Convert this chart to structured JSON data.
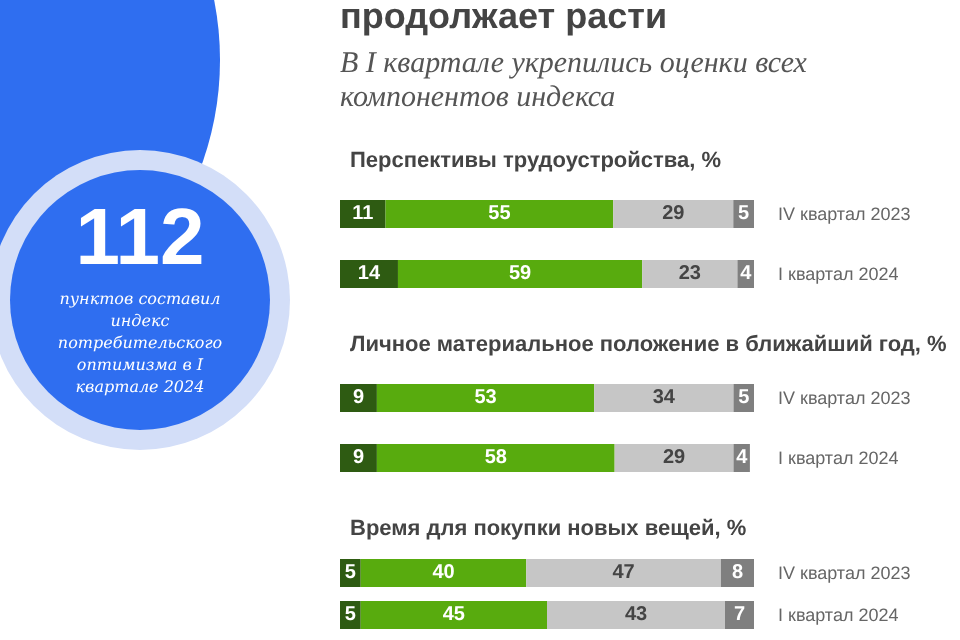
{
  "chart_data": [
    {
      "type": "other",
      "title": "продолжает расти",
      "subtitle": "В I квартале укрепились оценки всех компонентов индекса",
      "annotations": [
        "112",
        "пунктов составил индекс потребительского оптимизма в I квартале 2024"
      ]
    },
    {
      "type": "bar",
      "orientation": "horizontal",
      "stacked": true,
      "data_labels": true,
      "tick_labels": "y",
      "title": "Перспективы трудоустройства, %",
      "categories": [
        "IV квартал 2023",
        "I квартал 2024"
      ],
      "series": [
        {
          "color": "#2e5b12",
          "values": [
            11,
            14
          ]
        },
        {
          "color": "#58ab0e",
          "values": [
            55,
            59
          ]
        },
        {
          "color": "#c6c6c6",
          "values": [
            29,
            23
          ]
        },
        {
          "color": "#7f7f7f",
          "values": [
            5,
            4
          ]
        }
      ]
    },
    {
      "type": "bar",
      "orientation": "horizontal",
      "stacked": true,
      "data_labels": true,
      "tick_labels": "y",
      "title": "Личное материальное положение в ближайший год, %",
      "categories": [
        "IV квартал 2023",
        "I квартал 2024"
      ],
      "series": [
        {
          "color": "#2e5b12",
          "values": [
            9,
            9
          ]
        },
        {
          "color": "#58ab0e",
          "values": [
            53,
            58
          ]
        },
        {
          "color": "#c6c6c6",
          "values": [
            34,
            29
          ]
        },
        {
          "color": "#7f7f7f",
          "values": [
            5,
            4
          ]
        }
      ]
    },
    {
      "type": "bar",
      "orientation": "horizontal",
      "stacked": true,
      "data_labels": true,
      "tick_labels": "y",
      "title": "Время для покупки новых вещей, %",
      "categories": [
        "IV квартал 2023",
        "I квартал 2024"
      ],
      "series": [
        {
          "color": "#2e5b12",
          "values": [
            5,
            5
          ]
        },
        {
          "color": "#58ab0e",
          "values": [
            40,
            45
          ]
        },
        {
          "color": "#c6c6c6",
          "values": [
            47,
            43
          ]
        },
        {
          "color": "#7f7f7f",
          "values": [
            8,
            7
          ]
        }
      ]
    }
  ]
}
